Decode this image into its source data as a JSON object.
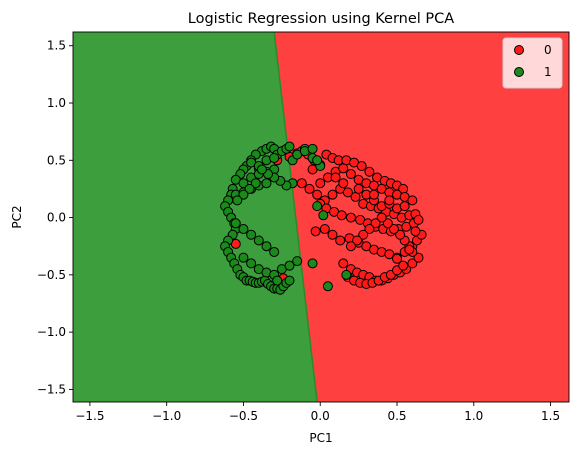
{
  "chart_data": {
    "type": "scatter",
    "title": "Logistic Regression using Kernel PCA",
    "xlabel": "PC1",
    "ylabel": "PC2",
    "xlim": [
      -1.61,
      1.62
    ],
    "ylim": [
      -1.61,
      1.62
    ],
    "xticks": [
      -1.5,
      -1.0,
      -0.5,
      0.0,
      0.5,
      1.0,
      1.5
    ],
    "xtick_labels": [
      "−1.5",
      "−1.0",
      "−0.5",
      "0.0",
      "0.5",
      "1.0",
      "1.5"
    ],
    "yticks": [
      -1.5,
      -1.0,
      -0.5,
      0.0,
      0.5,
      1.0,
      1.5
    ],
    "ytick_labels": [
      "−1.5",
      "−1.0",
      "−0.5",
      "0.0",
      "0.5",
      "1.0",
      "1.5"
    ],
    "grid": false,
    "legend_position": "top-right",
    "decision_regions": {
      "boundary_line": [
        [
          -0.3,
          1.62
        ],
        [
          -0.02,
          -1.61
        ]
      ],
      "left_class": "1",
      "right_class": "0",
      "colors": {
        "0": "#ff4040",
        "1": "#3d9e3d"
      }
    },
    "series": [
      {
        "name": "0",
        "color": "#ff1a1a",
        "x": [
          -0.4,
          -0.28,
          -0.2,
          -0.15,
          -0.12,
          -0.08,
          -0.04,
          0.0,
          0.04,
          0.08,
          0.12,
          0.17,
          0.22,
          0.27,
          0.32,
          0.37,
          0.42,
          0.46,
          0.5,
          0.54,
          -0.05,
          0.0,
          0.05,
          0.1,
          0.15,
          0.2,
          0.25,
          0.3,
          0.35,
          0.4,
          0.45,
          0.5,
          0.55,
          0.6,
          -0.12,
          -0.07,
          -0.02,
          0.03,
          0.08,
          0.13,
          0.18,
          0.23,
          0.28,
          0.33,
          0.38,
          0.43,
          0.48,
          0.53,
          0.58,
          0.62,
          0.0,
          0.04,
          0.09,
          0.14,
          0.2,
          0.26,
          0.31,
          0.36,
          0.41,
          0.46,
          0.51,
          0.56,
          0.61,
          0.64,
          0.03,
          0.08,
          0.13,
          0.19,
          0.25,
          0.3,
          0.35,
          0.4,
          0.45,
          0.5,
          0.55,
          0.6,
          0.63,
          0.66,
          0.15,
          0.2,
          0.24,
          0.28,
          0.32,
          0.36,
          0.4,
          0.44,
          0.48,
          0.52,
          0.56,
          0.6,
          0.64,
          0.6,
          0.58,
          0.55,
          0.52,
          0.48,
          0.44,
          0.4,
          0.36,
          0.32,
          0.28,
          0.24,
          0.2,
          0.18,
          0.22,
          0.26,
          0.3,
          0.34,
          0.38,
          0.42,
          0.46,
          0.5,
          0.54,
          0.3,
          0.35,
          0.4,
          0.45,
          0.5,
          0.55,
          0.1,
          0.15,
          0.25,
          0.35,
          0.45,
          0.55,
          0.62,
          0.58,
          0.5,
          -0.24,
          -0.03,
          -0.55
        ],
        "y": [
          0.43,
          0.5,
          0.53,
          0.56,
          0.58,
          0.55,
          0.5,
          0.46,
          0.55,
          0.52,
          0.5,
          0.5,
          0.48,
          0.45,
          0.4,
          0.35,
          0.32,
          0.3,
          0.28,
          0.25,
          0.42,
          0.3,
          0.35,
          0.4,
          0.43,
          0.38,
          0.33,
          0.3,
          0.28,
          0.25,
          0.22,
          0.2,
          0.18,
          0.15,
          0.3,
          0.25,
          0.2,
          0.15,
          0.2,
          0.25,
          0.22,
          0.18,
          0.12,
          0.1,
          0.08,
          0.05,
          0.03,
          0.0,
          0.02,
          0.03,
          0.12,
          0.08,
          0.05,
          0.02,
          0.0,
          -0.02,
          -0.05,
          -0.08,
          -0.1,
          -0.12,
          -0.1,
          -0.08,
          -0.05,
          -0.02,
          -0.1,
          -0.15,
          -0.2,
          -0.18,
          -0.22,
          -0.25,
          -0.28,
          -0.3,
          -0.32,
          -0.35,
          -0.3,
          -0.25,
          -0.2,
          -0.15,
          -0.4,
          -0.45,
          -0.48,
          -0.5,
          -0.52,
          -0.55,
          -0.55,
          -0.53,
          -0.5,
          -0.48,
          -0.45,
          -0.4,
          -0.35,
          -0.3,
          -0.25,
          -0.2,
          -0.15,
          -0.1,
          -0.05,
          0.0,
          -0.05,
          -0.1,
          -0.15,
          -0.2,
          -0.25,
          -0.52,
          -0.55,
          -0.57,
          -0.58,
          -0.57,
          -0.55,
          -0.52,
          -0.5,
          -0.46,
          -0.42,
          0.2,
          0.15,
          0.1,
          0.12,
          0.08,
          0.1,
          0.35,
          0.3,
          0.25,
          0.2,
          0.15,
          0.1,
          -0.12,
          -0.28,
          -0.36,
          -0.53,
          -0.12,
          -0.23
        ]
      },
      {
        "name": "1",
        "color": "#1a8a1a",
        "x": [
          -0.38,
          -0.35,
          -0.32,
          -0.3,
          -0.28,
          -0.25,
          -0.22,
          -0.2,
          -0.18,
          -0.42,
          -0.45,
          -0.48,
          -0.5,
          -0.52,
          -0.55,
          -0.57,
          -0.58,
          -0.6,
          -0.62,
          -0.6,
          -0.58,
          -0.56,
          -0.55,
          -0.57,
          -0.6,
          -0.62,
          -0.6,
          -0.58,
          -0.56,
          -0.54,
          -0.52,
          -0.5,
          -0.48,
          -0.46,
          -0.44,
          -0.42,
          -0.4,
          -0.38,
          -0.36,
          -0.34,
          -0.32,
          -0.3,
          -0.28,
          -0.26,
          -0.24,
          -0.22,
          -0.2,
          -0.45,
          -0.4,
          -0.35,
          -0.3,
          -0.5,
          -0.45,
          -0.4,
          -0.35,
          -0.3,
          -0.55,
          -0.5,
          -0.45,
          -0.4,
          -0.35,
          -0.55,
          -0.5,
          -0.45,
          -0.4,
          -0.35,
          -0.3,
          -0.5,
          -0.45,
          -0.4,
          -0.35,
          -0.3,
          -0.25,
          -0.2,
          -0.15,
          -0.1,
          -0.05,
          0.0,
          -0.18,
          -0.22,
          -0.26,
          -0.3,
          -0.34,
          -0.38,
          -0.42,
          -0.46,
          -0.5,
          -0.54,
          -0.15,
          -0.1,
          -0.05,
          -0.02,
          0.05,
          0.17,
          -0.02,
          0.02,
          -0.05,
          -0.28
        ],
        "y": [
          0.58,
          0.6,
          0.62,
          0.6,
          0.55,
          0.58,
          0.6,
          0.62,
          0.5,
          0.55,
          0.5,
          0.45,
          0.42,
          0.38,
          0.33,
          0.25,
          0.2,
          0.15,
          0.1,
          0.05,
          0.0,
          -0.05,
          -0.1,
          -0.15,
          -0.2,
          -0.25,
          -0.3,
          -0.35,
          -0.4,
          -0.45,
          -0.5,
          -0.52,
          -0.55,
          -0.55,
          -0.56,
          -0.57,
          -0.57,
          -0.56,
          -0.55,
          -0.58,
          -0.6,
          -0.62,
          -0.62,
          -0.63,
          -0.6,
          -0.57,
          -0.55,
          0.48,
          0.45,
          0.5,
          0.52,
          0.3,
          0.35,
          0.38,
          0.4,
          0.42,
          0.2,
          0.22,
          0.25,
          0.28,
          0.3,
          -0.05,
          -0.1,
          -0.15,
          -0.2,
          -0.25,
          -0.3,
          -0.35,
          -0.4,
          -0.45,
          -0.48,
          -0.5,
          -0.45,
          -0.42,
          -0.38,
          0.6,
          0.52,
          0.45,
          0.3,
          0.28,
          0.32,
          0.35,
          0.38,
          0.42,
          0.3,
          0.25,
          0.2,
          0.15,
          0.55,
          0.58,
          0.6,
          0.5,
          -0.6,
          -0.5,
          0.1,
          0.02,
          -0.4,
          -0.55
        ]
      }
    ]
  }
}
